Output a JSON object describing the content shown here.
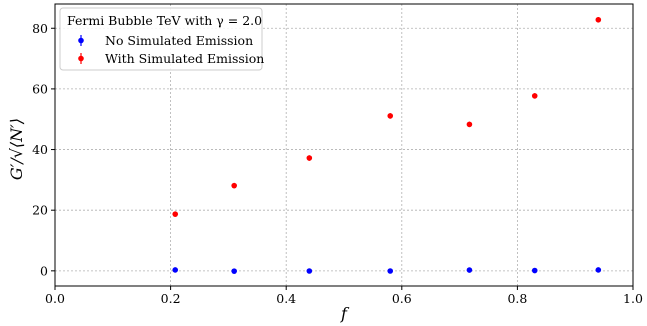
{
  "chart_data": {
    "type": "scatter",
    "title": "",
    "xlabel": "f",
    "ylabel": "G′/√⟨N′⟩",
    "xlim": [
      0.0,
      1.0
    ],
    "ylim": [
      -5,
      88
    ],
    "xticks": [
      0.0,
      0.2,
      0.4,
      0.6,
      0.8,
      1.0
    ],
    "xtick_labels": [
      "0.0",
      "0.2",
      "0.4",
      "0.6",
      "0.8",
      "1.0"
    ],
    "yticks": [
      0,
      20,
      40,
      60,
      80
    ],
    "ytick_labels": [
      "0",
      "20",
      "40",
      "60",
      "80"
    ],
    "grid": true,
    "legend": {
      "placement": "top-left",
      "title": "Fermi Bubble TeV with γ = 2.0"
    },
    "series": [
      {
        "name": "No Simulated Emission",
        "color": "#0000ff",
        "marker": "circle",
        "errorbars": true,
        "x": [
          0.208,
          0.31,
          0.44,
          0.58,
          0.717,
          0.83,
          0.94
        ],
        "y": [
          0.3,
          -0.1,
          -0.05,
          -0.05,
          0.25,
          0.1,
          0.3
        ],
        "err": [
          0.5,
          0.5,
          0.5,
          0.5,
          0.5,
          0.5,
          0.5
        ]
      },
      {
        "name": "With Simulated Emission",
        "color": "#ff0000",
        "marker": "circle",
        "errorbars": true,
        "x": [
          0.208,
          0.31,
          0.44,
          0.58,
          0.717,
          0.83,
          0.94
        ],
        "y": [
          18.7,
          28.1,
          37.2,
          51.1,
          48.3,
          57.7,
          82.8
        ],
        "err": [
          0.9,
          0.9,
          0.9,
          0.9,
          0.9,
          0.9,
          0.9
        ]
      }
    ]
  }
}
